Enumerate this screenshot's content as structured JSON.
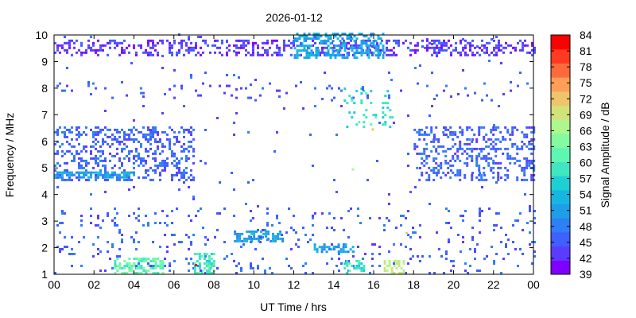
{
  "chart_data": {
    "type": "heatmap",
    "title": "2026-01-12",
    "xlabel": "UT Time / hrs",
    "ylabel": "Frequency / MHz",
    "colorbar_label": "Signal Amplitude / dB",
    "xlim": [
      0,
      24
    ],
    "ylim": [
      1,
      10
    ],
    "x_tick_labels": [
      "00",
      "02",
      "04",
      "06",
      "08",
      "10",
      "12",
      "14",
      "16",
      "18",
      "20",
      "22",
      "00"
    ],
    "y_tick_labels": [
      "1",
      "2",
      "3",
      "4",
      "5",
      "6",
      "7",
      "8",
      "9",
      "10"
    ],
    "colorbar_range": [
      39,
      84
    ],
    "colorbar_tick_labels": [
      "39",
      "42",
      "45",
      "48",
      "51",
      "54",
      "57",
      "60",
      "63",
      "66",
      "69",
      "72",
      "75",
      "78",
      "81",
      "84"
    ],
    "colorbar_colors": [
      "#7f00ff",
      "#5b3cff",
      "#3f5fff",
      "#2f7ff6",
      "#1e9de8",
      "#17b6e0",
      "#1ed0d3",
      "#3fe6c1",
      "#5ef6b3",
      "#84fba0",
      "#aef78c",
      "#d2e27b",
      "#f0c46c",
      "#ff9e56",
      "#ff6a3c",
      "#ff3a20",
      "#ff0000"
    ],
    "grid": false,
    "regions": [
      {
        "x": [
          0,
          24
        ],
        "y": [
          9.2,
          9.8
        ],
        "amp": 43,
        "density": 0.35
      },
      {
        "x": [
          12,
          16.5
        ],
        "y": [
          9.1,
          10
        ],
        "amp": 52,
        "density": 0.5
      },
      {
        "x": [
          0,
          7
        ],
        "y": [
          4.5,
          6.5
        ],
        "amp": 46,
        "density": 0.3
      },
      {
        "x": [
          0,
          4
        ],
        "y": [
          4.6,
          4.8
        ],
        "amp": 52,
        "density": 0.6
      },
      {
        "x": [
          18,
          24
        ],
        "y": [
          4.5,
          6.5
        ],
        "amp": 46,
        "density": 0.3
      },
      {
        "x": [
          0,
          24
        ],
        "y": [
          7.5,
          8.2
        ],
        "amp": 45,
        "density": 0.05
      },
      {
        "x": [
          0,
          24
        ],
        "y": [
          1,
          3.5
        ],
        "amp": 46,
        "density": 0.05
      },
      {
        "x": [
          9,
          11.5
        ],
        "y": [
          2.2,
          2.6
        ],
        "amp": 52,
        "density": 0.6
      },
      {
        "x": [
          13,
          15
        ],
        "y": [
          1.8,
          2.1
        ],
        "amp": 51,
        "density": 0.5
      },
      {
        "x": [
          3,
          5.5
        ],
        "y": [
          1,
          1.6
        ],
        "amp": 62,
        "density": 0.5
      },
      {
        "x": [
          7,
          8
        ],
        "y": [
          1,
          1.8
        ],
        "amp": 60,
        "density": 0.5
      },
      {
        "x": [
          14.5,
          15.5
        ],
        "y": [
          1,
          1.5
        ],
        "amp": 58,
        "density": 0.5
      },
      {
        "x": [
          16.5,
          17.5
        ],
        "y": [
          1,
          1.5
        ],
        "amp": 68,
        "density": 0.5
      },
      {
        "x": [
          14.5,
          17
        ],
        "y": [
          6.5,
          8
        ],
        "amp": 58,
        "density": 0.15
      },
      {
        "x": [
          0,
          24
        ],
        "y": [
          1,
          10
        ],
        "amp": 45,
        "density": 0.01
      }
    ],
    "highlights": [
      {
        "x": 7.05,
        "y": 1.3,
        "amp": 84
      },
      {
        "x": 15.9,
        "y": 6.4,
        "amp": 72
      },
      {
        "x": 14.9,
        "y": 4.9,
        "amp": 68
      },
      {
        "x": 17.6,
        "y": 2.5,
        "amp": 72
      }
    ]
  }
}
